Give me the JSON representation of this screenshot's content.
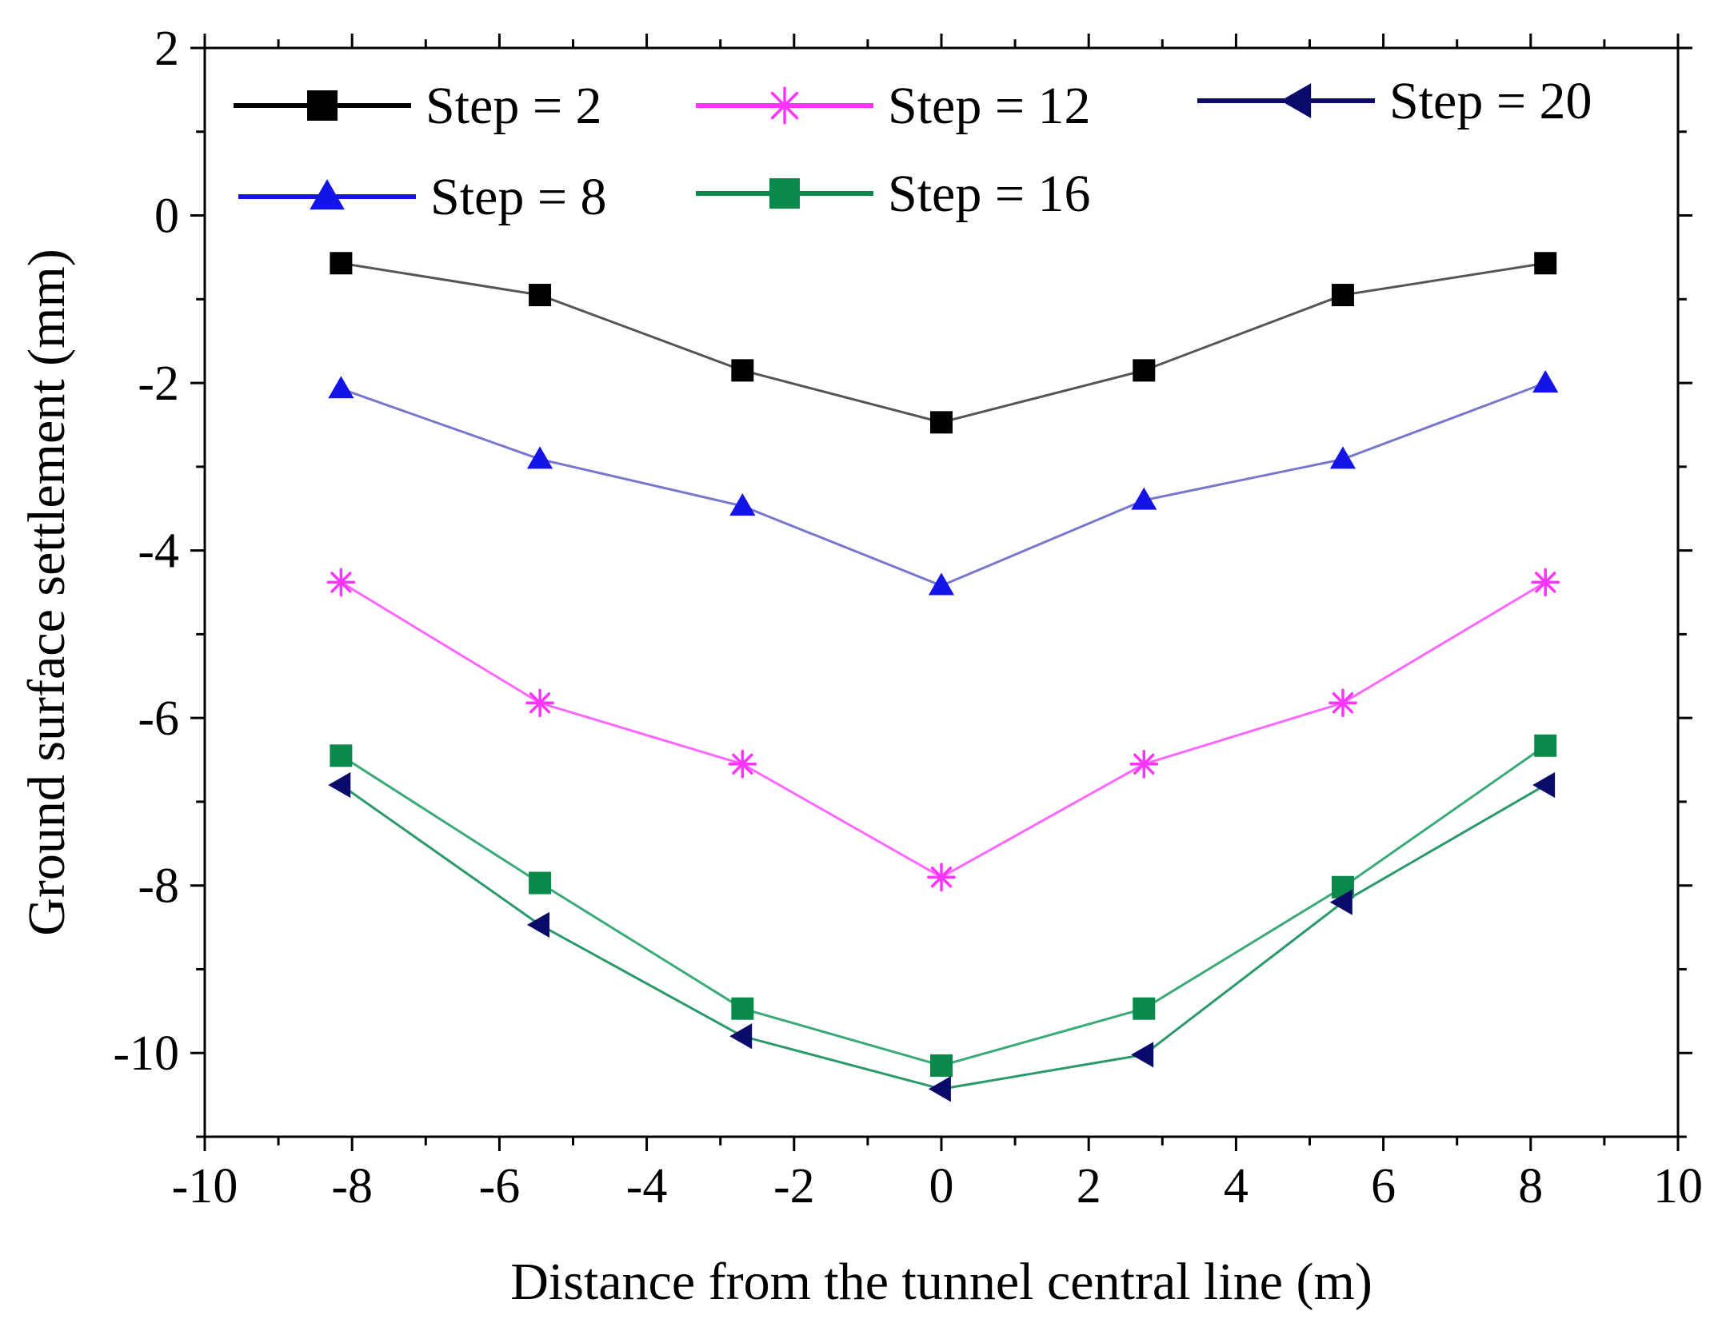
{
  "chart_data": {
    "type": "line",
    "title": "",
    "xlabel": "Distance from the tunnel central line (m)",
    "ylabel": "Ground surface settlement (mm)",
    "xlim": [
      -10,
      10
    ],
    "ylim": [
      -11,
      2
    ],
    "x_ticks": [
      -10,
      -8,
      -6,
      -4,
      -2,
      0,
      2,
      4,
      6,
      8,
      10
    ],
    "x_tick_labels": [
      "-10",
      "-8",
      "-6",
      "-4",
      "-2",
      "0",
      "2",
      "4",
      "6",
      "8",
      "10"
    ],
    "y_ticks": [
      -10,
      -8,
      -6,
      -4,
      -2,
      0,
      2
    ],
    "y_tick_labels": [
      "-10",
      "-8",
      "-6",
      "-4",
      "-2",
      "0",
      "2"
    ],
    "x": [
      -8.15,
      -5.45,
      -2.7,
      0,
      2.75,
      5.45,
      8.2
    ],
    "legend_position": "top",
    "series": [
      {
        "name": "Step = 2",
        "marker": "square",
        "color": "#000000",
        "line_color": "#555555",
        "values": [
          -0.57,
          -0.95,
          -1.85,
          -2.47,
          -1.85,
          -0.95,
          -0.57
        ]
      },
      {
        "name": "Step = 8",
        "marker": "triangle-up",
        "color": "#1414e6",
        "line_color": "#7777cc",
        "values": [
          -2.07,
          -2.91,
          -3.47,
          -4.42,
          -3.4,
          -2.91,
          -2.0
        ]
      },
      {
        "name": "Step = 12",
        "marker": "asterisk",
        "color": "#ff33ff",
        "line_color": "#ff66ff",
        "values": [
          -4.38,
          -5.82,
          -6.55,
          -7.9,
          -6.55,
          -5.82,
          -4.38
        ]
      },
      {
        "name": "Step = 16",
        "marker": "square",
        "color": "#0a8a4a",
        "line_color": "#3aaa78",
        "values": [
          -6.45,
          -7.97,
          -9.47,
          -10.15,
          -9.47,
          -8.02,
          -6.33
        ]
      },
      {
        "name": "Step = 20",
        "marker": "triangle-left",
        "color": "#0a0a6a",
        "line_color": "#2a9a6a",
        "values": [
          -6.8,
          -8.47,
          -9.8,
          -10.43,
          -10.02,
          -8.2,
          -6.8
        ]
      }
    ]
  }
}
